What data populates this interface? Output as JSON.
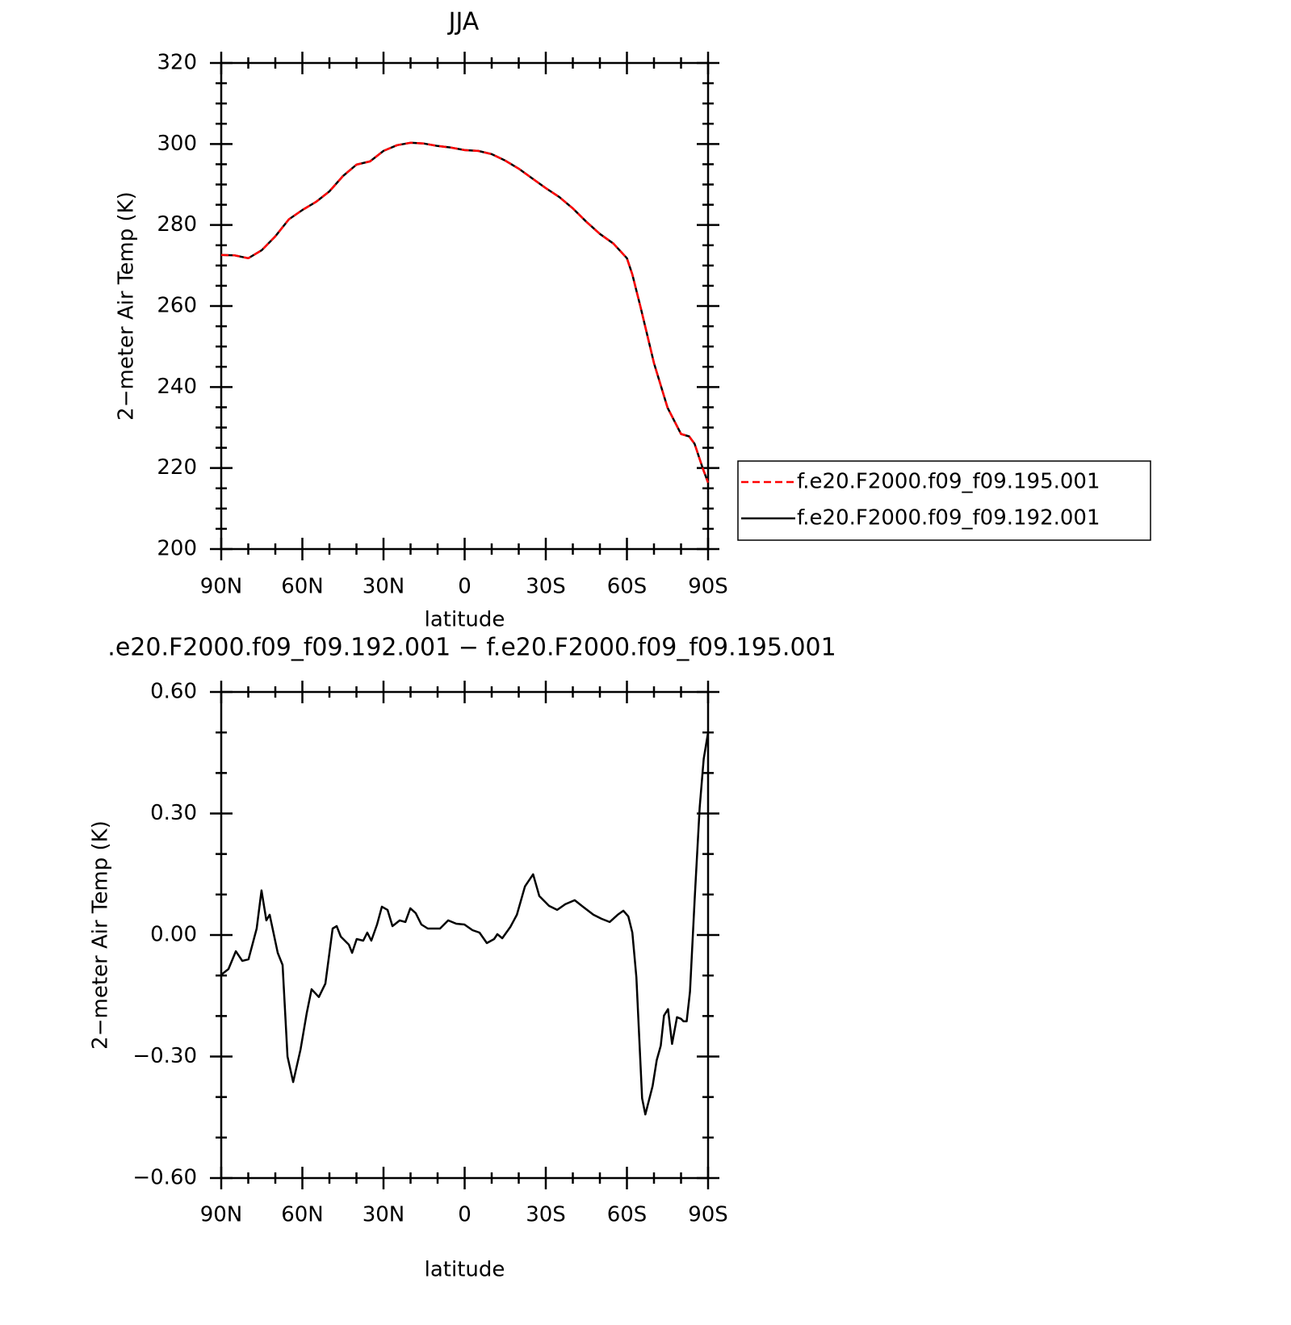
{
  "chart_data": [
    {
      "type": "line",
      "title": "JJA",
      "xlabel": "latitude",
      "ylabel": "2−meter Air Temp (K)",
      "xlim": [
        90,
        -90
      ],
      "xticks": [
        {
          "value": 90,
          "label": "90N"
        },
        {
          "value": 60,
          "label": "60N"
        },
        {
          "value": 30,
          "label": "30N"
        },
        0,
        {
          "value": -30,
          "label": "30S"
        },
        {
          "value": -60,
          "label": "60S"
        },
        {
          "value": -90,
          "label": "90S"
        }
      ],
      "xminorticks": [
        80,
        70,
        50,
        40,
        20,
        10,
        -10,
        -20,
        -40,
        -50,
        -70,
        -80
      ],
      "ylim": [
        200,
        320
      ],
      "yticks": [
        200,
        220,
        240,
        260,
        280,
        300,
        320
      ],
      "yminorticks": [
        205,
        210,
        215,
        225,
        230,
        235,
        245,
        250,
        255,
        265,
        270,
        275,
        285,
        290,
        295,
        305,
        310,
        315
      ],
      "legend": "right",
      "x": [
        90,
        85,
        80,
        75,
        70,
        65,
        60,
        55,
        50,
        45,
        40,
        35,
        30,
        25,
        20,
        15,
        10,
        5,
        0,
        -5,
        -10,
        -15,
        -20,
        -25,
        -30,
        -35,
        -40,
        -45,
        -50,
        -55,
        -60,
        -62,
        -65,
        -70,
        -75,
        -80,
        -83,
        -85,
        -88,
        -90
      ],
      "series": [
        {
          "name": "f.e20.F2000.f09_f09.195.001",
          "color": "#ff0000",
          "linestyle": "dashed",
          "values": [
            272.6,
            272.5,
            271.8,
            273.8,
            277.2,
            281.4,
            283.7,
            285.7,
            288.3,
            292.1,
            294.9,
            295.7,
            298.3,
            299.7,
            300.3,
            300.1,
            299.5,
            299.1,
            298.5,
            298.3,
            297.5,
            295.9,
            293.9,
            291.5,
            289.1,
            286.9,
            284.1,
            280.8,
            277.8,
            275.4,
            271.8,
            267.8,
            259.8,
            245.9,
            234.9,
            228.4,
            227.8,
            226,
            220,
            216.4
          ]
        },
        {
          "name": "f.e20.F2000.f09_f09.192.001",
          "color": "#000000",
          "linestyle": "solid",
          "values": [
            272.6,
            272.5,
            271.8,
            273.8,
            277.2,
            281.4,
            283.7,
            285.7,
            288.3,
            292.1,
            294.9,
            295.7,
            298.3,
            299.7,
            300.3,
            300.1,
            299.5,
            299.1,
            298.5,
            298.3,
            297.5,
            295.9,
            293.9,
            291.5,
            289.1,
            286.9,
            284.1,
            280.8,
            277.8,
            275.4,
            271.8,
            267.8,
            259.8,
            245.9,
            234.9,
            228.4,
            227.8,
            226,
            220,
            216.4
          ]
        }
      ]
    },
    {
      "type": "line",
      "title": ".e20.F2000.f09_f09.192.001 − f.e20.F2000.f09_f09.195.001",
      "xlabel": "latitude",
      "ylabel": "2−meter Air Temp (K)",
      "xlim": [
        90,
        -90
      ],
      "xticks": [
        {
          "value": 90,
          "label": "90N"
        },
        {
          "value": 60,
          "label": "60N"
        },
        {
          "value": 30,
          "label": "30N"
        },
        0,
        {
          "value": -30,
          "label": "30S"
        },
        {
          "value": -60,
          "label": "60S"
        },
        {
          "value": -90,
          "label": "90S"
        }
      ],
      "xminorticks": [
        80,
        70,
        50,
        40,
        20,
        10,
        -10,
        -20,
        -40,
        -50,
        -70,
        -80
      ],
      "ylim": [
        -0.6,
        0.6
      ],
      "yticks": [
        {
          "value": -0.6,
          "label": "−0.60"
        },
        {
          "value": -0.3,
          "label": "−0.30"
        },
        {
          "value": 0,
          "label": "0.00"
        },
        {
          "value": 0.3,
          "label": "0.30"
        },
        {
          "value": 0.6,
          "label": "0.60"
        }
      ],
      "yminorticks": [
        -0.5,
        -0.4,
        -0.2,
        -0.1,
        0.1,
        0.2,
        0.4,
        0.5
      ],
      "x": [
        90,
        87.3,
        84.6,
        82.2,
        79.9,
        76.9,
        75.1,
        73.3,
        72.1,
        69.1,
        67.3,
        65.5,
        63.4,
        60.7,
        58.4,
        56.6,
        53.9,
        51.5,
        48.8,
        47.3,
        45.8,
        42.8,
        41.6,
        39.9,
        37.5,
        36.0,
        34.5,
        32.4,
        30.6,
        28.5,
        26.7,
        24.0,
        21.9,
        20.1,
        18.1,
        16.0,
        13.6,
        9.1,
        6.1,
        3.1,
        0.1,
        -2.9,
        -5.5,
        -8.2,
        -10.9,
        -12.1,
        -13.9,
        -16.9,
        -19.3,
        -22.3,
        -25.3,
        -27.6,
        -31.2,
        -34.2,
        -37.2,
        -40.7,
        -43.7,
        -47.6,
        -50.6,
        -53.6,
        -56.6,
        -58.7,
        -60.5,
        -62.0,
        -63.5,
        -65.6,
        -66.8,
        -69.5,
        -71.0,
        -72.5,
        -73.7,
        -75.2,
        -76.7,
        -78.5,
        -80.0,
        -80.9,
        -82.1,
        -83.3,
        -85.1,
        -86.9,
        -88.4,
        -90
      ],
      "series": [
        {
          "color": "#000000",
          "linestyle": "solid",
          "values": [
            -0.098,
            -0.084,
            -0.04,
            -0.064,
            -0.06,
            0.016,
            0.11,
            0.036,
            0.05,
            -0.044,
            -0.074,
            -0.3,
            -0.363,
            -0.283,
            -0.193,
            -0.134,
            -0.153,
            -0.12,
            0.016,
            0.022,
            -0.004,
            -0.024,
            -0.044,
            -0.01,
            -0.014,
            0.006,
            -0.014,
            0.026,
            0.07,
            0.062,
            0.022,
            0.036,
            0.032,
            0.066,
            0.054,
            0.026,
            0.016,
            0.016,
            0.036,
            0.028,
            0.026,
            0.012,
            0.006,
            -0.02,
            -0.01,
            0.002,
            -0.008,
            0.02,
            0.05,
            0.12,
            0.15,
            0.096,
            0.072,
            0.062,
            0.076,
            0.086,
            0.07,
            0.05,
            0.04,
            0.032,
            0.05,
            0.06,
            0.046,
            0.006,
            -0.104,
            -0.403,
            -0.443,
            -0.373,
            -0.309,
            -0.273,
            -0.199,
            -0.183,
            -0.269,
            -0.203,
            -0.207,
            -0.213,
            -0.213,
            -0.14,
            0.096,
            0.315,
            0.435,
            0.5
          ]
        }
      ]
    }
  ]
}
